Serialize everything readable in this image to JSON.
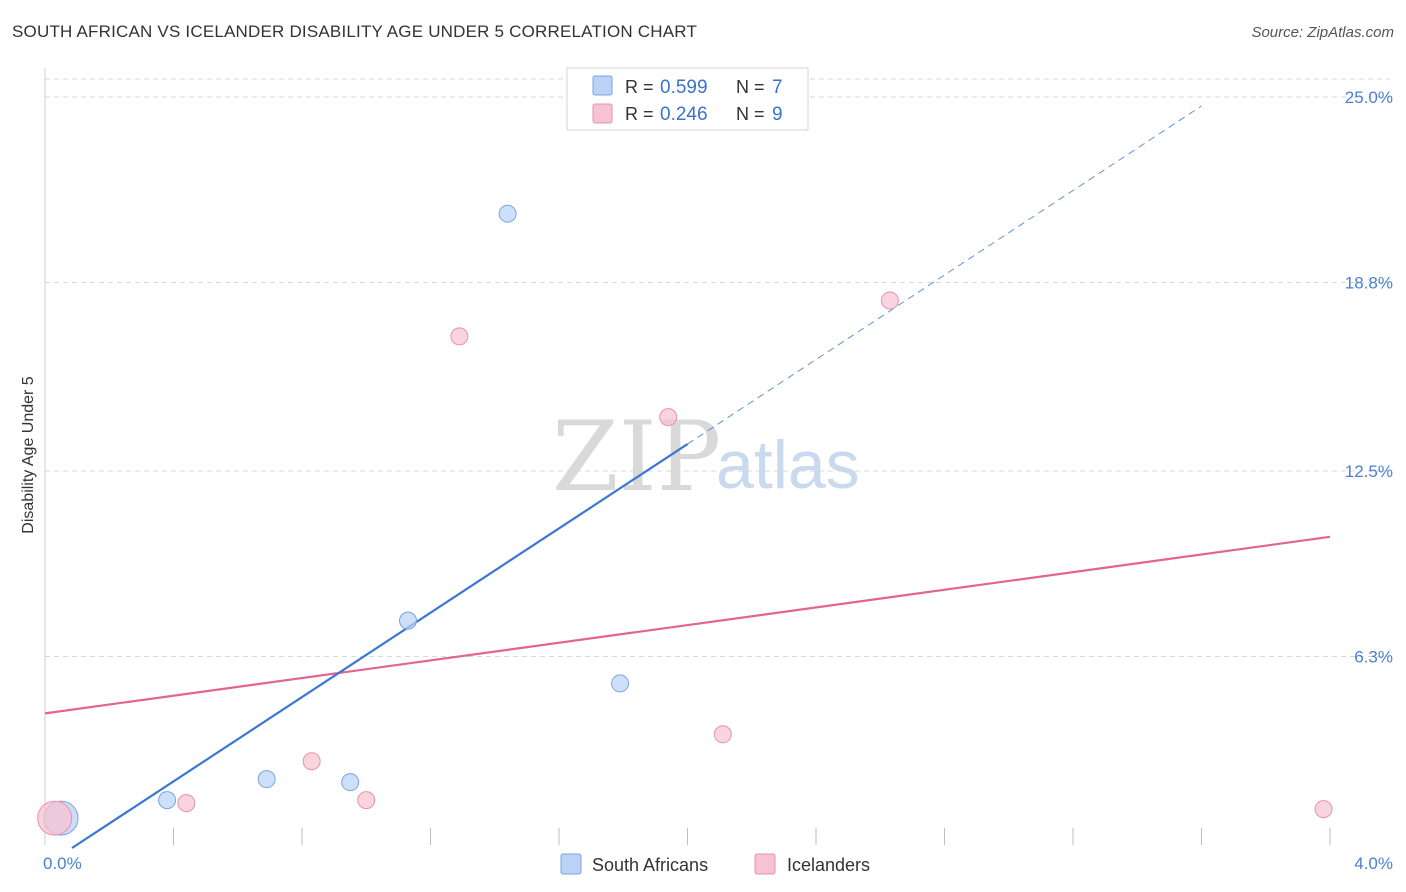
{
  "title": "SOUTH AFRICAN VS ICELANDER DISABILITY AGE UNDER 5 CORRELATION CHART",
  "source": "Source: ZipAtlas.com",
  "watermark": {
    "part1": "ZIP",
    "part2": "atlas"
  },
  "colors": {
    "blue": "#3a77d4",
    "blue_fill": "#b9d2f6",
    "pink": "#e2648f",
    "pink_fill": "#f7c2d2",
    "grid": "#d8d8d8"
  },
  "legend": {
    "items": [
      {
        "r_label": "R =",
        "r_value": "0.599",
        "n_label": "N =",
        "n_value": "7"
      },
      {
        "r_label": "R =",
        "r_value": "0.246",
        "n_label": "N =",
        "n_value": "9"
      }
    ]
  },
  "chart_data": {
    "type": "scatter",
    "title": "SOUTH AFRICAN VS ICELANDER DISABILITY AGE UNDER 5 CORRELATION CHART",
    "xlabel": "",
    "ylabel": "Disability Age Under 5",
    "xlim": [
      0,
      4.0
    ],
    "ylim": [
      0,
      25.0
    ],
    "x_tick_labels": [
      "0.0%",
      "4.0%"
    ],
    "y_ticks": [
      6.3,
      12.5,
      18.8,
      25.0
    ],
    "y_tick_labels": [
      "6.3%",
      "12.5%",
      "18.8%",
      "25.0%"
    ],
    "grid": true,
    "legend_position": "top-center",
    "series": [
      {
        "name": "South Africans",
        "color": "#3a77d4",
        "points": [
          {
            "x": 0.05,
            "y": 0.9,
            "big": true
          },
          {
            "x": 0.38,
            "y": 1.5
          },
          {
            "x": 0.69,
            "y": 2.2
          },
          {
            "x": 0.95,
            "y": 2.1
          },
          {
            "x": 1.13,
            "y": 7.5
          },
          {
            "x": 1.79,
            "y": 5.4
          },
          {
            "x": 1.44,
            "y": 21.1
          }
        ],
        "trend": {
          "x0": 0.0,
          "y0": -0.7,
          "x1": 2.0,
          "y1": 13.4,
          "dash_x_end": 3.6,
          "dash_y_end": 24.7
        }
      },
      {
        "name": "Icelanders",
        "color": "#e2648f",
        "points": [
          {
            "x": 0.03,
            "y": 0.9,
            "big": true
          },
          {
            "x": 0.44,
            "y": 1.4
          },
          {
            "x": 0.83,
            "y": 2.8
          },
          {
            "x": 1.0,
            "y": 1.5
          },
          {
            "x": 1.29,
            "y": 17.0
          },
          {
            "x": 1.94,
            "y": 14.3
          },
          {
            "x": 2.11,
            "y": 3.7
          },
          {
            "x": 2.63,
            "y": 18.2
          },
          {
            "x": 3.98,
            "y": 1.2
          }
        ],
        "trend": {
          "x0": 0.0,
          "y0": 4.4,
          "x1": 4.0,
          "y1": 10.3
        }
      }
    ]
  }
}
